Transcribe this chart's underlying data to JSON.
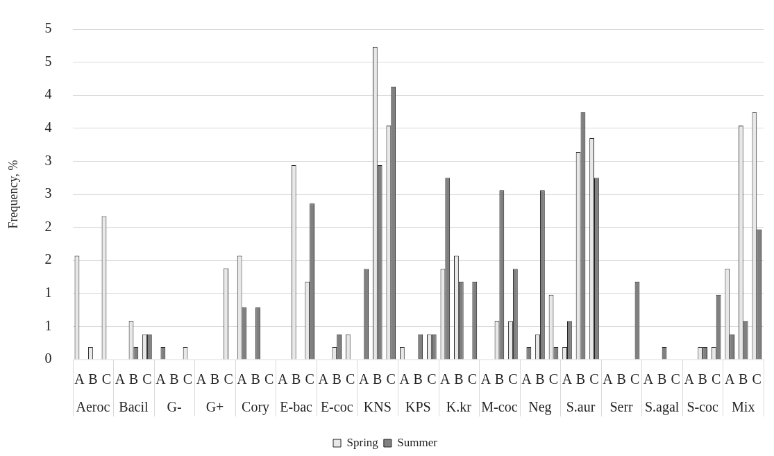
{
  "chart_data": {
    "type": "bar",
    "ylabel": "Frequency, %",
    "categories": [
      "A",
      "B",
      "C",
      "A",
      "B",
      "C",
      "A",
      "B",
      "C",
      "A",
      "B",
      "C",
      "A",
      "B",
      "C",
      "A",
      "B",
      "C",
      "A",
      "B",
      "C",
      "A",
      "B",
      "C",
      "A",
      "B",
      "C",
      "A",
      "B",
      "C",
      "A",
      "B",
      "C",
      "A",
      "B",
      "C",
      "A",
      "B",
      "C",
      "A",
      "B",
      "C",
      "A",
      "B",
      "C",
      "A",
      "B",
      "C",
      "A",
      "B",
      "C"
    ],
    "annotations": [
      "Aeroc",
      "Bacil",
      "G-",
      "G+",
      "Cory",
      "E-bac",
      "E-coc",
      "KNS",
      "KPS",
      "K.kr",
      "M-coc",
      "Neg",
      "S.aur",
      "Serr",
      "S.agal",
      "S-coc",
      "Mix"
    ],
    "series": [
      {
        "name": "Spring",
        "color": "#e8e8e8",
        "values": [
          1.57,
          0.19,
          2.17,
          null,
          0.58,
          0.38,
          null,
          null,
          0.19,
          null,
          null,
          1.38,
          1.57,
          null,
          null,
          null,
          2.94,
          1.18,
          null,
          0.19,
          0.38,
          null,
          4.73,
          3.54,
          0.19,
          null,
          0.38,
          1.37,
          1.57,
          null,
          null,
          0.58,
          0.58,
          null,
          0.38,
          0.98,
          0.19,
          3.14,
          3.35,
          null,
          null,
          null,
          null,
          null,
          null,
          null,
          0.19,
          0.19,
          1.37,
          3.54,
          3.74
        ]
      },
      {
        "name": "Summer",
        "color": "#808080",
        "values": [
          null,
          null,
          null,
          null,
          0.19,
          0.38,
          0.19,
          null,
          null,
          null,
          null,
          null,
          0.79,
          0.79,
          null,
          null,
          null,
          2.36,
          null,
          0.38,
          null,
          1.37,
          2.94,
          4.13,
          null,
          0.38,
          0.38,
          2.75,
          1.18,
          1.18,
          null,
          2.56,
          1.37,
          0.19,
          2.56,
          0.19,
          0.58,
          3.74,
          2.75,
          null,
          null,
          1.18,
          null,
          0.19,
          null,
          null,
          0.19,
          0.98,
          0.38,
          0.58,
          1.97
        ]
      }
    ],
    "ylim": [
      0,
      5
    ],
    "yticks": [
      0,
      {
        "value": 0.5,
        "label": "1"
      },
      1,
      {
        "value": 1.5,
        "label": "2"
      },
      2,
      {
        "value": 2.5,
        "label": "3"
      },
      3,
      {
        "value": 3.5,
        "label": "4"
      },
      4,
      {
        "value": 4.5,
        "label": "5"
      },
      5
    ],
    "grid": "y",
    "legend": "bottom"
  }
}
